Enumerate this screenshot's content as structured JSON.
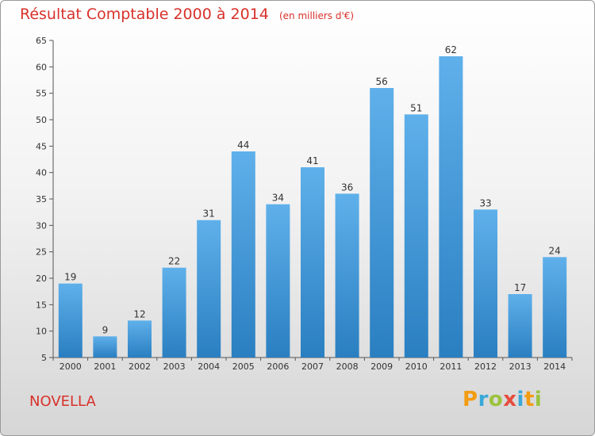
{
  "header": {
    "title": "Résultat Comptable 2000 à 2014",
    "unit": "(en milliers d'€)"
  },
  "footer": {
    "commune": "NOVELLA",
    "logo_letters": [
      "P",
      "r",
      "o",
      "x",
      "i",
      "t",
      "i"
    ],
    "logo_colors": [
      "#f39c12",
      "#3aa8d8",
      "#9bc33d",
      "#e74c3c",
      "#3aa8d8",
      "#f39c12",
      "#9bc33d"
    ]
  },
  "colors": {
    "title": "#d8312b",
    "bar_top": "#5fb0ea",
    "bar_bottom": "#2a7fc1"
  },
  "chart_data": {
    "type": "bar",
    "title": "Résultat Comptable 2000 à 2014",
    "subtitle": "(en milliers d'€)",
    "categories": [
      "2000",
      "2001",
      "2002",
      "2003",
      "2004",
      "2005",
      "2006",
      "2007",
      "2008",
      "2009",
      "2010",
      "2011",
      "2012",
      "2013",
      "2014"
    ],
    "values": [
      19,
      9,
      12,
      22,
      31,
      44,
      34,
      41,
      36,
      56,
      51,
      62,
      33,
      17,
      24
    ],
    "yticks": [
      5,
      10,
      15,
      20,
      25,
      30,
      35,
      40,
      45,
      50,
      55,
      60,
      65
    ],
    "ylim": [
      5,
      65
    ],
    "grid": false,
    "legend": "none"
  }
}
